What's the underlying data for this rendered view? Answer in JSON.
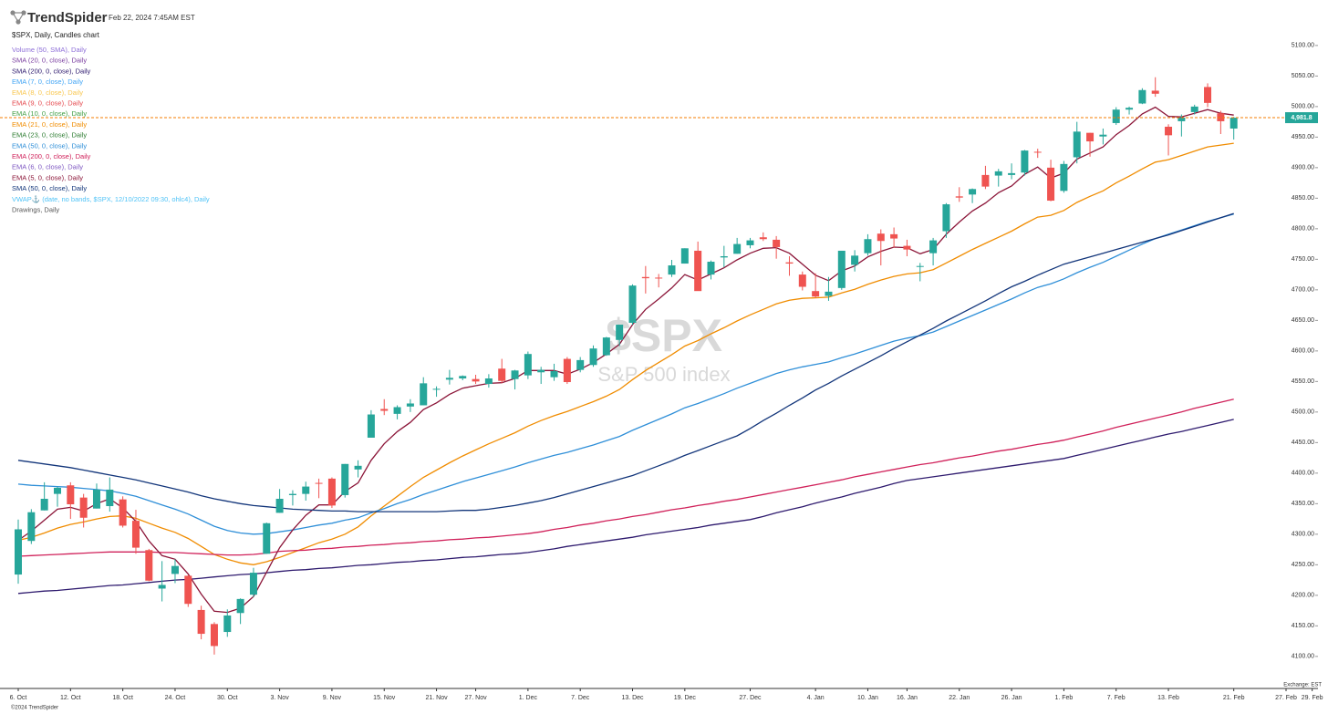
{
  "brand": "TrendSpider",
  "timestamp": "Feb 22, 2024 7:45AM EST",
  "footer": "©2024 TrendSpider",
  "chart_data": {
    "type": "candlestick",
    "title": "$SPX, Daily, Candles chart",
    "watermark": "$SPX",
    "watermark_subtitle": "S&P 500 index",
    "exchange_label": "Exchange: EST",
    "up_color": "#26a69a",
    "down_color": "#ef5350",
    "last_price": {
      "value": 4981.8,
      "label": "4,981.8"
    },
    "last_price_color": "#f57c00",
    "categories": [
      "6. Oct",
      null,
      null,
      null,
      "12. Oct",
      null,
      null,
      null,
      "18. Oct",
      null,
      null,
      null,
      "24. Oct",
      null,
      null,
      null,
      "30. Oct",
      null,
      null,
      null,
      "3. Nov",
      null,
      null,
      null,
      "9. Nov",
      null,
      null,
      null,
      "15. Nov",
      null,
      null,
      null,
      "21. Nov",
      null,
      null,
      "27. Nov",
      null,
      null,
      null,
      "1. Dec",
      null,
      null,
      null,
      "7. Dec",
      null,
      null,
      null,
      "13. Dec",
      null,
      null,
      null,
      "19. Dec",
      null,
      null,
      null,
      null,
      "27. Dec",
      null,
      null,
      null,
      null,
      "4. Jan",
      null,
      null,
      null,
      "10. Jan",
      null,
      null,
      "16. Jan",
      null,
      null,
      null,
      "22. Jan",
      null,
      null,
      null,
      "26. Jan",
      null,
      null,
      null,
      "1. Feb",
      null,
      null,
      null,
      "7. Feb",
      null,
      null,
      null,
      "13. Feb",
      null,
      null,
      null,
      null,
      "21. Feb",
      null,
      null,
      null,
      "27. Feb",
      null,
      "29. Feb"
    ],
    "open": [
      4234,
      4289,
      4339,
      4366,
      4380,
      4360,
      4342,
      4346,
      4357,
      4322,
      4274,
      4211,
      4235,
      4232,
      4176,
      4153,
      4140,
      4171,
      4201,
      4268,
      4335,
      4364,
      4366,
      4384,
      4391,
      4364,
      4406,
      4458,
      4505,
      4497,
      4509,
      4511,
      4538,
      4553,
      4555,
      4554,
      4546,
      4571,
      4554,
      4560,
      4565,
      4557,
      4587,
      4569,
      4577,
      4593,
      4618,
      4646,
      4721,
      4720,
      4725,
      4743,
      4764,
      4725,
      4753,
      4759,
      4773,
      4786,
      4782,
      4745,
      4725,
      4698,
      4690,
      4703,
      4741,
      4760,
      4792,
      4791,
      4772,
      4739,
      4760,
      4796,
      4853,
      4856,
      4888,
      4887,
      4888,
      4892,
      4926,
      4900,
      4862,
      4917,
      4957,
      4951,
      4973,
      4995,
      5005,
      5026,
      4967,
      4976,
      4991,
      5032,
      4989,
      4964,
      null,
      null,
      null,
      null,
      null,
      null
    ],
    "high": [
      4324,
      4341,
      4385,
      4378,
      4385,
      4366,
      4383,
      4393,
      4362,
      4340,
      4276,
      4256,
      4259,
      4233,
      4183,
      4156,
      4177,
      4195,
      4245,
      4319,
      4374,
      4372,
      4386,
      4391,
      4393,
      4415,
      4421,
      4503,
      4521,
      4511,
      4521,
      4557,
      4542,
      4569,
      4560,
      4561,
      4562,
      4587,
      4569,
      4599,
      4574,
      4579,
      4590,
      4590,
      4609,
      4623,
      4643,
      4709,
      4739,
      4726,
      4749,
      4768,
      4779,
      4748,
      4772,
      4785,
      4785,
      4794,
      4788,
      4755,
      4730,
      4727,
      4721,
      4764,
      4765,
      4791,
      4799,
      4802,
      4782,
      4744,
      4785,
      4842,
      4868,
      4866,
      4903,
      4898,
      4907,
      4929,
      4931,
      4913,
      4911,
      4975,
      4957,
      4964,
      4999,
      5000,
      5030,
      5048,
      4971,
      4987,
      5003,
      5038,
      4993,
      4983,
      null,
      null,
      null,
      null,
      null,
      null
    ],
    "low": [
      4219,
      4284,
      4339,
      4345,
      4325,
      4311,
      4342,
      4337,
      4311,
      4268,
      4223,
      4190,
      4220,
      4181,
      4128,
      4103,
      4132,
      4153,
      4197,
      4268,
      4335,
      4347,
      4355,
      4359,
      4343,
      4360,
      4393,
      4458,
      4495,
      4488,
      4500,
      4511,
      4525,
      4545,
      4552,
      4546,
      4540,
      4547,
      4537,
      4554,
      4546,
      4551,
      4546,
      4565,
      4574,
      4592,
      4608,
      4643,
      4694,
      4704,
      4721,
      4743,
      4699,
      4717,
      4737,
      4759,
      4768,
      4780,
      4751,
      4723,
      4699,
      4687,
      4682,
      4700,
      4730,
      4756,
      4740,
      4769,
      4755,
      4714,
      4740,
      4785,
      4844,
      4842,
      4865,
      4869,
      4881,
      4887,
      4916,
      4845,
      4859,
      4907,
      4918,
      4938,
      4970,
      4987,
      5004,
      5016,
      4920,
      4951,
      4987,
      4999,
      4955,
      4946,
      null,
      null,
      null,
      null,
      null,
      null
    ],
    "close": [
      4308,
      4336,
      4358,
      4376,
      4349,
      4327,
      4373,
      4373,
      4314,
      4278,
      4224,
      4217,
      4248,
      4186,
      4137,
      4117,
      4167,
      4194,
      4237,
      4318,
      4358,
      4366,
      4378,
      4383,
      4347,
      4415,
      4412,
      4496,
      4502,
      4508,
      4514,
      4547,
      4538,
      4556,
      4559,
      4550,
      4555,
      4551,
      4568,
      4595,
      4569,
      4567,
      4549,
      4585,
      4604,
      4622,
      4643,
      4707,
      4719,
      4719,
      4740,
      4768,
      4698,
      4746,
      4755,
      4775,
      4781,
      4783,
      4770,
      4743,
      4705,
      4689,
      4697,
      4764,
      4756,
      4783,
      4780,
      4784,
      4766,
      4739,
      4781,
      4840,
      4851,
      4865,
      4869,
      4894,
      4891,
      4928,
      4925,
      4846,
      4906,
      4959,
      4943,
      4954,
      4995,
      4998,
      5027,
      5021,
      4953,
      4982,
      5000,
      5006,
      4976,
      4981.8,
      null,
      null,
      null,
      null,
      null,
      null
    ],
    "ylim": [
      4052,
      5158
    ],
    "yticks": [
      {
        "value": 4100,
        "label": "4100.00"
      },
      {
        "value": 4150,
        "label": "4150.00"
      },
      {
        "value": 4200,
        "label": "4200.00"
      },
      {
        "value": 4250,
        "label": "4250.00"
      },
      {
        "value": 4300,
        "label": "4300.00"
      },
      {
        "value": 4350,
        "label": "4350.00"
      },
      {
        "value": 4400,
        "label": "4400.00"
      },
      {
        "value": 4450,
        "label": "4450.00"
      },
      {
        "value": 4500,
        "label": "4500.00"
      },
      {
        "value": 4550,
        "label": "4550.00"
      },
      {
        "value": 4600,
        "label": "4600.00"
      },
      {
        "value": 4650,
        "label": "4650.00"
      },
      {
        "value": 4700,
        "label": "4700.00"
      },
      {
        "value": 4750,
        "label": "4750.00"
      },
      {
        "value": 4800,
        "label": "4800.00"
      },
      {
        "value": 4850,
        "label": "4850.00"
      },
      {
        "value": 4900,
        "label": "4900.00"
      },
      {
        "value": 4950,
        "label": "4950.00"
      },
      {
        "value": 5000,
        "label": "5000.00"
      },
      {
        "value": 5050,
        "label": "5050.00"
      },
      {
        "value": 5100,
        "label": "5100.00"
      }
    ],
    "series": [
      {
        "name": "Volume (50, SMA), Daily",
        "color": "#8e6fd8"
      },
      {
        "name": "SMA (20, 0, close), Daily",
        "color": "#7b3fa0"
      },
      {
        "name": "SMA (200, 0, close), Daily",
        "color": "#2e1a6e",
        "values": [
          4203,
          4205,
          4207,
          4208,
          4210,
          4212,
          4214,
          4216,
          4217,
          4219,
          4221,
          4223,
          4225,
          4226,
          4228,
          4230,
          4232,
          4234,
          4235,
          4237,
          4239,
          4241,
          4242,
          4244,
          4245,
          4247,
          4249,
          4250,
          4252,
          4254,
          4255,
          4257,
          4258,
          4260,
          4262,
          4263,
          4265,
          4267,
          4268,
          4270,
          4273,
          4276,
          4280,
          4283,
          4286,
          4289,
          4292,
          4295,
          4299,
          4302,
          4305,
          4308,
          4311,
          4315,
          4318,
          4321,
          4324,
          4329,
          4335,
          4340,
          4345,
          4351,
          4356,
          4361,
          4367,
          4372,
          4377,
          4383,
          4388,
          4391,
          4394,
          4397,
          4400,
          4403,
          4406,
          4409,
          4412,
          4415,
          4418,
          4421,
          4424,
          4429,
          4434,
          4439,
          4444,
          4449,
          4454,
          4459,
          4464,
          4468,
          4473,
          4478,
          4483,
          4488,
          null,
          null,
          null,
          null,
          null,
          null
        ]
      },
      {
        "name": "EMA (7, 0, close), Daily",
        "color": "#42a5f5"
      },
      {
        "name": "EMA (8, 0, close), Daily",
        "color": "#f9c74f"
      },
      {
        "name": "EMA (9, 0, close), Daily",
        "color": "#e5484d"
      },
      {
        "name": "EMA (10, 0, close), Daily",
        "color": "#43a047"
      },
      {
        "name": "EMA (21, 0, close), Daily",
        "color": "#f08c00",
        "values": [
          4290,
          4295,
          4302,
          4310,
          4316,
          4320,
          4325,
          4329,
          4330,
          4326,
          4318,
          4310,
          4303,
          4293,
          4280,
          4267,
          4259,
          4253,
          4250,
          4255,
          4262,
          4270,
          4278,
          4286,
          4292,
          4300,
          4312,
          4330,
          4346,
          4362,
          4378,
          4393,
          4405,
          4417,
          4428,
          4438,
          4448,
          4457,
          4466,
          4477,
          4486,
          4494,
          4501,
          4509,
          4517,
          4526,
          4537,
          4553,
          4568,
          4581,
          4594,
          4608,
          4617,
          4628,
          4638,
          4649,
          4659,
          4668,
          4677,
          4683,
          4686,
          4687,
          4688,
          4695,
          4701,
          4709,
          4716,
          4722,
          4726,
          4728,
          4733,
          4744,
          4755,
          4766,
          4776,
          4786,
          4796,
          4808,
          4819,
          4822,
          4830,
          4843,
          4853,
          4862,
          4875,
          4886,
          4898,
          4909,
          4913,
          4920,
          4927,
          4934,
          4937,
          4940,
          null,
          null,
          null,
          null,
          null,
          null
        ]
      },
      {
        "name": "EMA (23, 0, close), Daily",
        "color": "#2e7d32"
      },
      {
        "name": "EMA (50, 0, close), Daily",
        "color": "#2f8fd8",
        "values": [
          4382,
          4380,
          4379,
          4378,
          4377,
          4375,
          4373,
          4371,
          4367,
          4362,
          4355,
          4348,
          4341,
          4333,
          4323,
          4313,
          4306,
          4302,
          4300,
          4301,
          4304,
          4307,
          4311,
          4315,
          4318,
          4323,
          4327,
          4335,
          4342,
          4350,
          4357,
          4365,
          4372,
          4379,
          4386,
          4392,
          4398,
          4404,
          4410,
          4417,
          4423,
          4429,
          4434,
          4440,
          4446,
          4453,
          4460,
          4470,
          4479,
          4488,
          4497,
          4507,
          4514,
          4522,
          4530,
          4539,
          4547,
          4555,
          4563,
          4569,
          4574,
          4578,
          4582,
          4589,
          4595,
          4602,
          4609,
          4616,
          4621,
          4625,
          4631,
          4640,
          4649,
          4658,
          4667,
          4676,
          4685,
          4695,
          4704,
          4710,
          4718,
          4728,
          4737,
          4745,
          4755,
          4765,
          4775,
          4784,
          4791,
          4798,
          4805,
          4812,
          4818,
          4824,
          null,
          null,
          null,
          null,
          null,
          null
        ]
      },
      {
        "name": "EMA (200, 0, close), Daily",
        "color": "#d0215a",
        "values": [
          4264,
          4265,
          4266,
          4267,
          4268,
          4269,
          4270,
          4271,
          4271,
          4271,
          4271,
          4270,
          4270,
          4269,
          4268,
          4267,
          4266,
          4266,
          4267,
          4269,
          4272,
          4273,
          4274,
          4276,
          4277,
          4279,
          4280,
          4282,
          4283,
          4285,
          4286,
          4288,
          4289,
          4291,
          4292,
          4294,
          4295,
          4297,
          4299,
          4301,
          4304,
          4308,
          4311,
          4315,
          4318,
          4322,
          4325,
          4329,
          4332,
          4336,
          4340,
          4343,
          4347,
          4350,
          4354,
          4357,
          4361,
          4365,
          4369,
          4373,
          4377,
          4381,
          4385,
          4389,
          4394,
          4398,
          4402,
          4406,
          4410,
          4414,
          4417,
          4421,
          4425,
          4428,
          4432,
          4436,
          4439,
          4443,
          4447,
          4450,
          4454,
          4459,
          4464,
          4469,
          4475,
          4480,
          4485,
          4490,
          4495,
          4500,
          4506,
          4511,
          4516,
          4521,
          null,
          null,
          null,
          null,
          null,
          null
        ]
      },
      {
        "name": "EMA (6, 0, close), Daily",
        "color": "#7e57c2"
      },
      {
        "name": "EMA (5, 0, close), Daily",
        "color": "#8b1538",
        "values": [
          4290,
          4305,
          4323,
          4341,
          4344,
          4338,
          4350,
          4358,
          4343,
          4321,
          4289,
          4265,
          4259,
          4235,
          4202,
          4174,
          4172,
          4179,
          4198,
          4238,
          4278,
          4307,
          4331,
          4348,
          4348,
          4370,
          4384,
          4421,
          4448,
          4468,
          4483,
          4504,
          4515,
          4529,
          4539,
          4543,
          4547,
          4548,
          4555,
          4568,
          4568,
          4568,
          4562,
          4570,
          4581,
          4595,
          4611,
          4643,
          4668,
          4685,
          4703,
          4725,
          4716,
          4726,
          4736,
          4749,
          4760,
          4768,
          4769,
          4760,
          4742,
          4724,
          4715,
          4731,
          4739,
          4754,
          4763,
          4770,
          4769,
          4759,
          4766,
          4791,
          4811,
          4829,
          4842,
          4859,
          4870,
          4889,
          4901,
          4883,
          4891,
          4914,
          4924,
          4934,
          4954,
          4969,
          4988,
          4999,
          4984,
          4983,
          4989,
          4995,
          4989,
          4986,
          null,
          null,
          null,
          null,
          null,
          null
        ]
      },
      {
        "name": "SMA (50, 0, close), Daily",
        "color": "#12357a",
        "values": [
          4421,
          4418,
          4415,
          4412,
          4409,
          4405,
          4401,
          4397,
          4393,
          4389,
          4384,
          4379,
          4374,
          4369,
          4363,
          4358,
          4354,
          4350,
          4347,
          4345,
          4343,
          4341,
          4340,
          4339,
          4338,
          4338,
          4337,
          4337,
          4337,
          4337,
          4337,
          4337,
          4337,
          4338,
          4339,
          4339,
          4341,
          4344,
          4347,
          4351,
          4355,
          4360,
          4366,
          4372,
          4378,
          4384,
          4390,
          4396,
          4404,
          4412,
          4420,
          4429,
          4437,
          4445,
          4453,
          4461,
          4473,
          4486,
          4498,
          4511,
          4523,
          4536,
          4547,
          4559,
          4570,
          4581,
          4592,
          4604,
          4615,
          4626,
          4637,
          4649,
          4660,
          4671,
          4682,
          4694,
          4705,
          4714,
          4724,
          4733,
          4742,
          4748,
          4754,
          4760,
          4766,
          4772,
          4778,
          4784,
          4790,
          4797,
          4804,
          4811,
          4818,
          4825,
          null,
          null,
          null,
          null,
          null,
          null
        ]
      },
      {
        "name": "VWAP⚓ (date, no bands, $SPX, 12/10/2022 09:30, ohlc4), Daily",
        "color": "#4fc3f7"
      },
      {
        "name": "Drawings, Daily",
        "color": "#555555"
      }
    ]
  }
}
